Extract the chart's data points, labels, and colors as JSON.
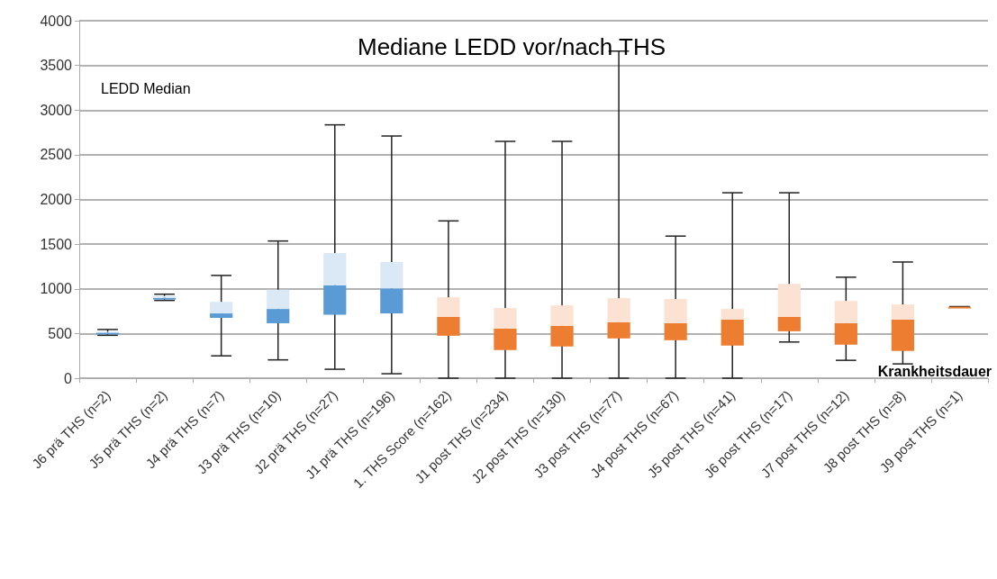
{
  "chart_data": {
    "type": "box",
    "title": "Mediane LEDD vor/nach THS",
    "ylabel": "LEDD Median",
    "xlabel": "Krankheitsdauer",
    "categories": [
      "J6 prä THS (n=2)",
      "J5 prä THS (n=2)",
      "J4 prä THS (n=7)",
      "J3 prä THS (n=10)",
      "J2 prä THS (n=27)",
      "J1 prä THS (n=196)",
      "1. THS Score (n=162)",
      "J1 post THS (n=234)",
      "J2 post THS (n=130)",
      "J3 post THS (n=77)",
      "J4 post THS (n=67)",
      "J5 post THS (n=41)",
      "J6 post THS (n=17)",
      "J7 post THS (n=12)",
      "J8 post THS (n=8)",
      "J9 post THS (n=1)"
    ],
    "series": [
      {
        "color": "#5b9bd5",
        "boxes": [
          {
            "low": 480,
            "q1": 500,
            "median": 510,
            "q3": 520,
            "high": 545
          },
          {
            "low": 870,
            "q1": 890,
            "median": 900,
            "q3": 920,
            "high": 940
          },
          {
            "low": 250,
            "q1": 675,
            "median": 725,
            "q3": 855,
            "high": 1150
          },
          {
            "low": 205,
            "q1": 615,
            "median": 775,
            "q3": 990,
            "high": 1535
          },
          {
            "low": 100,
            "q1": 710,
            "median": 1040,
            "q3": 1400,
            "high": 2835
          },
          {
            "low": 50,
            "q1": 725,
            "median": 1005,
            "q3": 1300,
            "high": 2710
          },
          null,
          null,
          null,
          null,
          null,
          null,
          null,
          null,
          null,
          null
        ]
      },
      {
        "color": "#ed7d31",
        "boxes": [
          null,
          null,
          null,
          null,
          null,
          null,
          {
            "low": 0,
            "q1": 475,
            "median": 685,
            "q3": 905,
            "high": 1760
          },
          {
            "low": 0,
            "q1": 315,
            "median": 555,
            "q3": 785,
            "high": 2650
          },
          {
            "low": 0,
            "q1": 355,
            "median": 585,
            "q3": 815,
            "high": 2650
          },
          {
            "low": 0,
            "q1": 445,
            "median": 625,
            "q3": 895,
            "high": 3660
          },
          {
            "low": 0,
            "q1": 425,
            "median": 615,
            "q3": 885,
            "high": 1590
          },
          {
            "low": 0,
            "q1": 365,
            "median": 655,
            "q3": 775,
            "high": 2075
          },
          {
            "low": 405,
            "q1": 525,
            "median": 685,
            "q3": 1055,
            "high": 2075
          },
          {
            "low": 200,
            "q1": 375,
            "median": 615,
            "q3": 865,
            "high": 1130
          },
          {
            "low": 160,
            "q1": 305,
            "median": 655,
            "q3": 825,
            "high": 1300
          },
          {
            "low": 800,
            "q1": 800,
            "median": 800,
            "q3": 800,
            "high": 800
          }
        ]
      }
    ],
    "ylim": [
      0,
      4000
    ],
    "yticks": [
      0,
      500,
      1000,
      1500,
      2000,
      2500,
      3000,
      3500,
      4000
    ],
    "grid": "y"
  }
}
